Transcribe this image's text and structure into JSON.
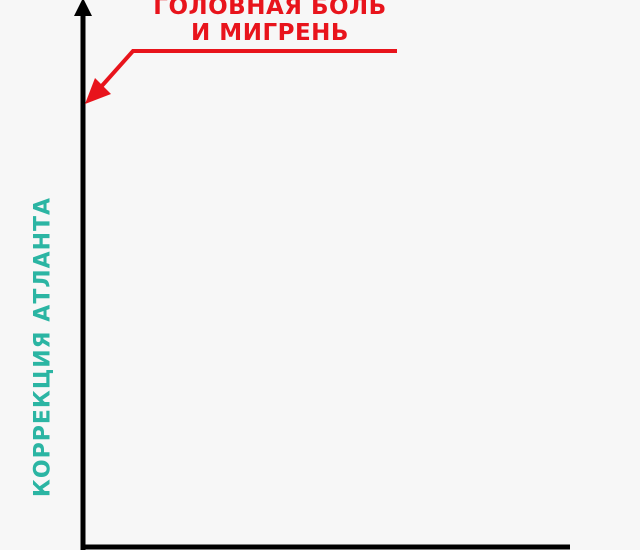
{
  "callout": {
    "line1": "ГОЛОВНАЯ БОЛЬ",
    "line2": "И МИГРЕНЬ",
    "color": "#e8141c"
  },
  "y_axis": {
    "label": "КОРРЕКЦИЯ АТЛАНТА",
    "color": "#2bb5a3"
  },
  "axis_color": "#000000"
}
